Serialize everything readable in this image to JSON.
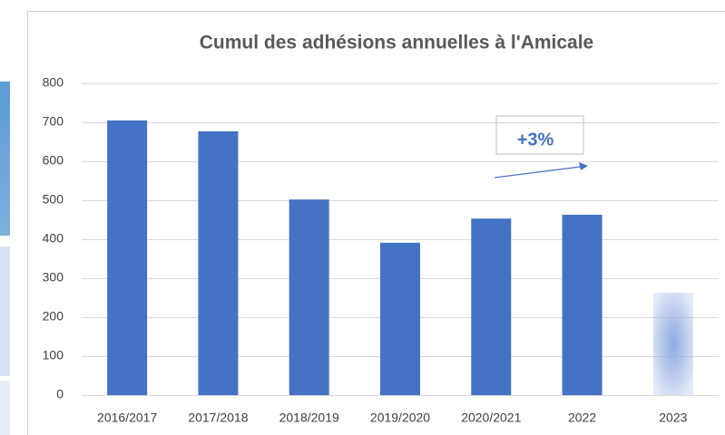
{
  "chart_data": {
    "type": "bar",
    "title": "Cumul des adhésions annuelles à l'Amicale",
    "categories": [
      "2016/2017",
      "2017/2018",
      "2018/2019",
      "2019/2020",
      "2020/2021",
      "2022",
      "2023"
    ],
    "values": [
      705,
      677,
      502,
      391,
      453,
      463,
      263
    ],
    "colors": [
      "#4472c4",
      "#4472c4",
      "#4472c4",
      "#4472c4",
      "#4472c4",
      "#4472c4",
      "#8ea9e0"
    ],
    "fill_styles": [
      "solid",
      "solid",
      "solid",
      "solid",
      "solid",
      "solid",
      "gradient"
    ],
    "ylim": [
      0,
      800
    ],
    "yticks": [
      0,
      100,
      200,
      300,
      400,
      500,
      600,
      700,
      800
    ],
    "grid": true,
    "annotation": "+3%"
  }
}
